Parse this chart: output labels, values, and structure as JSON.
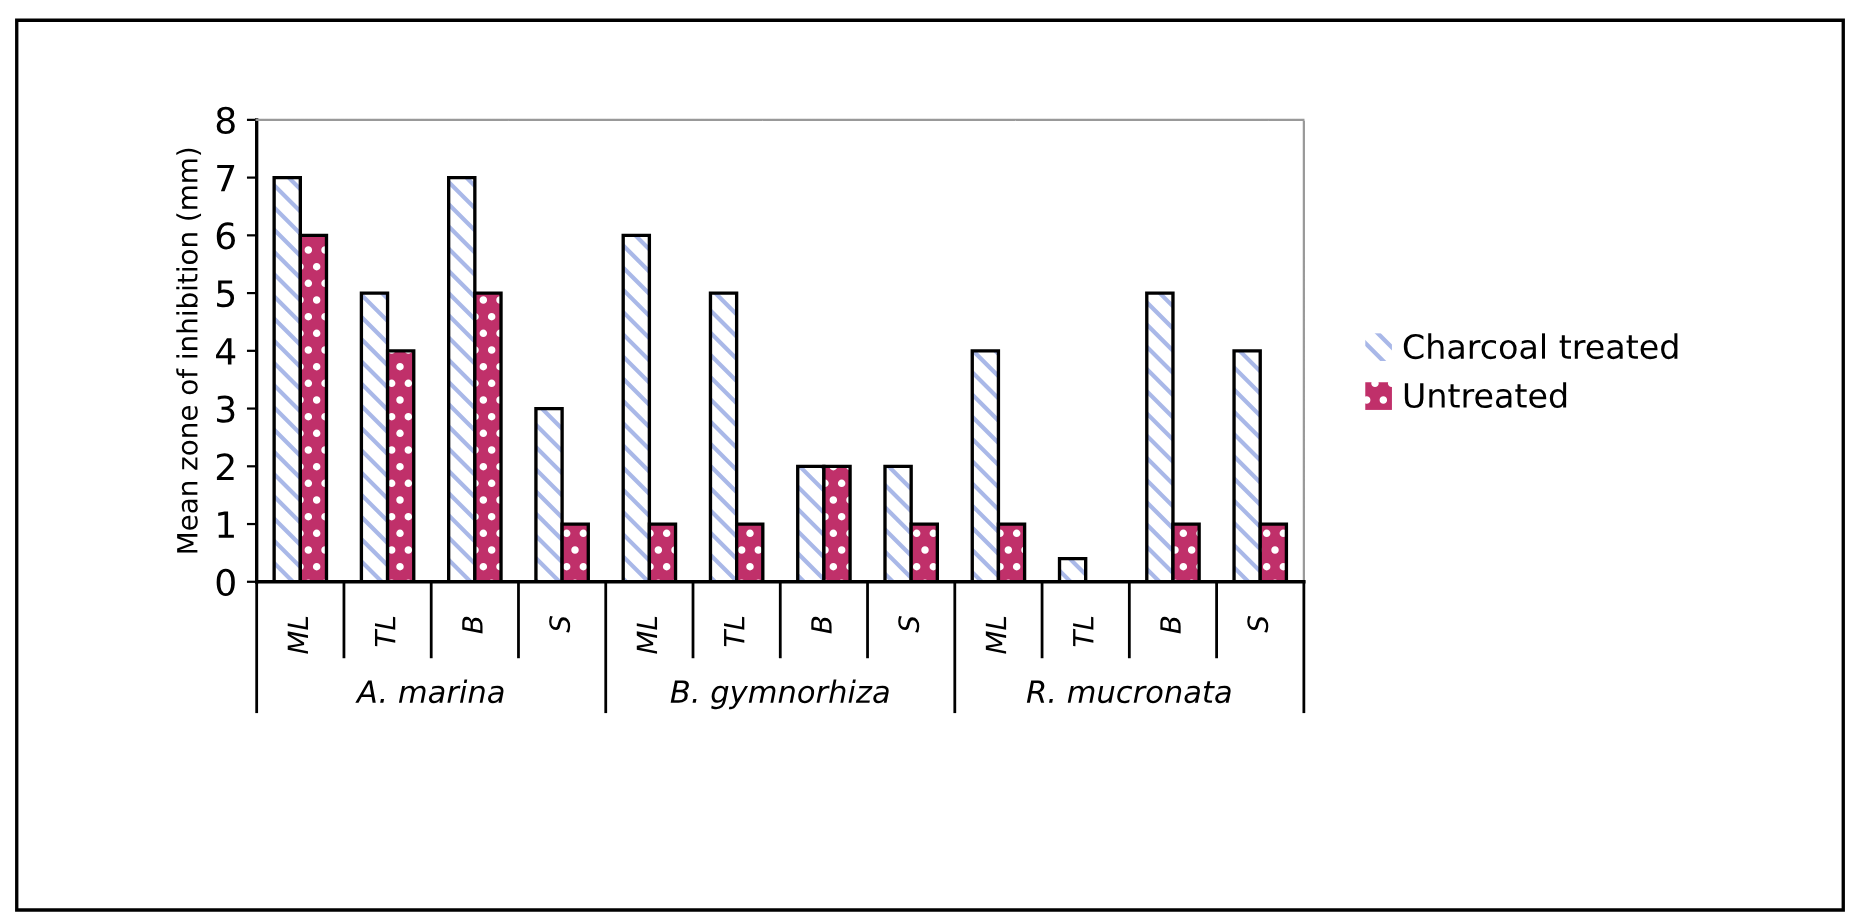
{
  "chart_data": {
    "type": "bar",
    "ylabel": "Mean zone of inhibition (mm)",
    "categories": [
      "ML",
      "TL",
      "B",
      "S",
      "ML",
      "TL",
      "B",
      "S",
      "ML",
      "TL",
      "B",
      "S"
    ],
    "series": [
      {
        "name": "Charcoal treated",
        "color": "#a9b8e8",
        "values": [
          7,
          5,
          7,
          3,
          6,
          5,
          2,
          2,
          4,
          0.4,
          5,
          4
        ]
      },
      {
        "name": "Untreated",
        "color": "#c0306a",
        "values": [
          6,
          4,
          5,
          1,
          1,
          1,
          2,
          1,
          1,
          null,
          1,
          1
        ]
      }
    ],
    "annotations": [
      "A. marina",
      "B. gymnorhiza",
      "R. mucronata"
    ],
    "ylim": [
      0,
      8
    ],
    "yticks": [
      0,
      1,
      2,
      3,
      4,
      5,
      6,
      7,
      8
    ],
    "grid": false,
    "legend": "right"
  }
}
